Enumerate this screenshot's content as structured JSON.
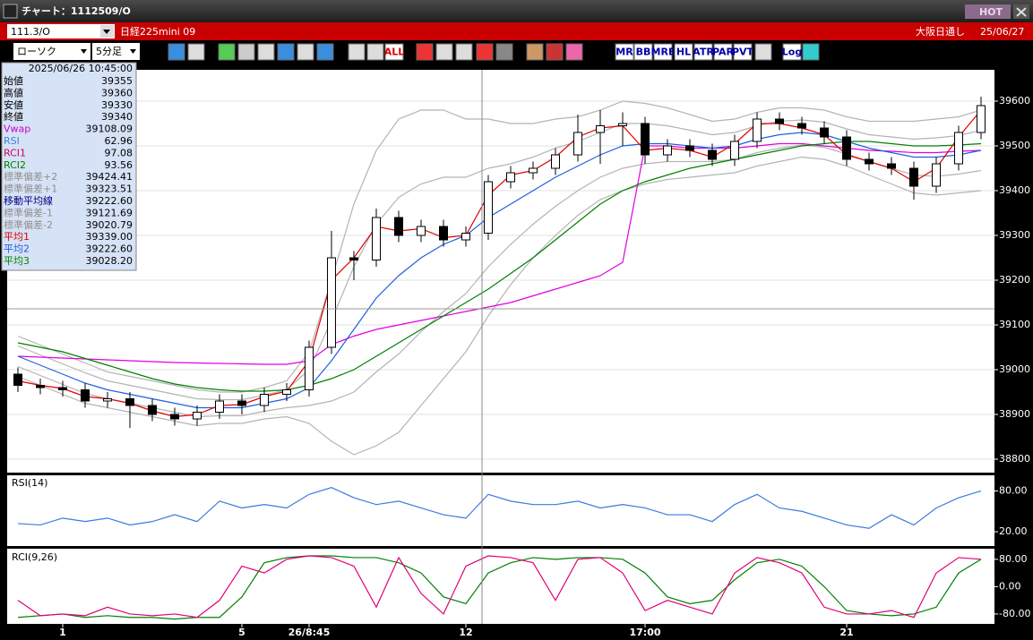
{
  "window": {
    "title": "チャート：1112509/O",
    "hot": "HOT"
  },
  "header": {
    "symbol": "111.3/O",
    "name": "日経225mini 09",
    "market": "大阪日通し",
    "date": "25/06/27"
  },
  "toolbar": {
    "chart_style": "ローソク",
    "interval": "5分足",
    "icon_labels": [
      "ALL",
      "MR",
      "BB",
      "MRE",
      "HL",
      "ATR",
      "PAR",
      "PVT",
      "Log"
    ]
  },
  "panel": {
    "datetime": "2025/06/26 10:45:00",
    "rows": [
      {
        "label": "始値",
        "value": "39355",
        "color": "#000000"
      },
      {
        "label": "高値",
        "value": "39360",
        "color": "#000000"
      },
      {
        "label": "安値",
        "value": "39330",
        "color": "#000000"
      },
      {
        "label": "終値",
        "value": "39340",
        "color": "#000000"
      },
      {
        "label": "Vwap",
        "value": "39108.09",
        "color": "#d000d0"
      },
      {
        "label": "RSI",
        "value": "62.96",
        "color": "#4080e0"
      },
      {
        "label": "RCI1",
        "value": "97.08",
        "color": "#d0006a"
      },
      {
        "label": "RCI2",
        "value": "93.56",
        "color": "#008000"
      },
      {
        "label": "標準偏差+2",
        "value": "39424.41",
        "color": "#909090"
      },
      {
        "label": "標準偏差+1",
        "value": "39323.51",
        "color": "#909090"
      },
      {
        "label": "移動平均線",
        "value": "39222.60",
        "color": "#000080"
      },
      {
        "label": "標準偏差-1",
        "value": "39121.69",
        "color": "#909090"
      },
      {
        "label": "標準偏差-2",
        "value": "39020.79",
        "color": "#909090"
      },
      {
        "label": "平均1",
        "value": "39339.00",
        "color": "#e00000"
      },
      {
        "label": "平均2",
        "value": "39222.60",
        "color": "#1f5fe0"
      },
      {
        "label": "平均3",
        "value": "39028.20",
        "color": "#008000"
      }
    ]
  },
  "chart_data": [
    {
      "type": "candlestick",
      "categories": [
        null,
        null,
        "1",
        null,
        null,
        null,
        null,
        null,
        null,
        null,
        "5",
        null,
        null,
        "26/8:45",
        null,
        null,
        null,
        null,
        null,
        null,
        "12",
        null,
        null,
        null,
        null,
        null,
        null,
        null,
        "17:00",
        null,
        null,
        null,
        null,
        null,
        null,
        null,
        null,
        "21",
        null,
        null,
        null,
        null,
        null,
        null
      ],
      "open": [
        38990,
        38965,
        38960,
        38955,
        38930,
        38935,
        38920,
        38900,
        38890,
        38905,
        38930,
        38920,
        38945,
        38955,
        39050,
        39250,
        39245,
        39340,
        39300,
        39320,
        39290,
        39305,
        39420,
        39440,
        39450,
        39480,
        39530,
        39545,
        39550,
        39480,
        39500,
        39490,
        39470,
        39510,
        39560,
        39550,
        39540,
        39520,
        39470,
        39460,
        39450,
        39410,
        39460,
        39530
      ],
      "high": [
        39005,
        38980,
        38975,
        38970,
        38950,
        38950,
        38935,
        38915,
        38920,
        38945,
        38945,
        38960,
        38970,
        39065,
        39310,
        39265,
        39360,
        39355,
        39335,
        39335,
        39320,
        39435,
        39455,
        39465,
        39495,
        39570,
        39580,
        39575,
        39565,
        39515,
        39515,
        39505,
        39525,
        39575,
        39575,
        39565,
        39555,
        39535,
        39485,
        39475,
        39465,
        39475,
        39545,
        39610
      ],
      "low": [
        38950,
        38945,
        38940,
        38915,
        38915,
        38870,
        38885,
        38875,
        38875,
        38890,
        38900,
        38905,
        38930,
        38940,
        39035,
        39200,
        39230,
        39285,
        39285,
        39275,
        39275,
        39290,
        39405,
        39425,
        39435,
        39465,
        39460,
        39500,
        39460,
        39465,
        39475,
        39455,
        39455,
        39495,
        39535,
        39525,
        39505,
        39455,
        39445,
        39435,
        39380,
        39395,
        39445,
        39515
      ],
      "close": [
        38965,
        38960,
        38955,
        38930,
        38935,
        38920,
        38900,
        38890,
        38905,
        38930,
        38920,
        38945,
        38955,
        39050,
        39250,
        39245,
        39340,
        39300,
        39320,
        39290,
        39305,
        39420,
        39440,
        39450,
        39480,
        39530,
        39545,
        39550,
        39480,
        39500,
        39490,
        39470,
        39510,
        39560,
        39550,
        39540,
        39520,
        39470,
        39460,
        39450,
        39410,
        39460,
        39530,
        39590
      ],
      "up_color": "#ffffff",
      "down_color": "#000000",
      "series": [
        {
          "color": "#b4b4b4",
          "values": [
            39075,
            39055,
            39035,
            39015,
            38995,
            38985,
            38975,
            38965,
            38955,
            38950,
            38950,
            38960,
            38975,
            39040,
            39200,
            39370,
            39490,
            39560,
            39580,
            39580,
            39560,
            39560,
            39550,
            39550,
            39560,
            39565,
            39580,
            39600,
            39595,
            39585,
            39570,
            39555,
            39560,
            39575,
            39585,
            39585,
            39580,
            39565,
            39555,
            39555,
            39555,
            39560,
            39565,
            39580
          ]
        },
        {
          "color": "#b4b4b4",
          "values": [
            39053,
            39033,
            39013,
            38993,
            38975,
            38965,
            38955,
            38945,
            38935,
            38933,
            38933,
            38943,
            38955,
            39000,
            39110,
            39230,
            39325,
            39385,
            39415,
            39430,
            39430,
            39450,
            39460,
            39475,
            39495,
            39510,
            39530,
            39550,
            39550,
            39545,
            39535,
            39525,
            39530,
            39545,
            39555,
            39558,
            39553,
            39538,
            39525,
            39520,
            39515,
            39518,
            39523,
            39535
          ]
        },
        {
          "color": "#b4b4b4",
          "values": [
            39007,
            38987,
            38967,
            38947,
            38935,
            38925,
            38915,
            38905,
            38895,
            38897,
            38897,
            38907,
            38915,
            38920,
            38930,
            38950,
            38995,
            39035,
            39085,
            39130,
            39170,
            39230,
            39280,
            39325,
            39365,
            39400,
            39430,
            39450,
            39460,
            39465,
            39465,
            39465,
            39470,
            39485,
            39495,
            39502,
            39497,
            39482,
            39465,
            39450,
            39435,
            39432,
            39437,
            39445
          ]
        },
        {
          "color": "#b4b4b4",
          "values": [
            38985,
            38965,
            38945,
            38925,
            38915,
            38905,
            38895,
            38885,
            38875,
            38880,
            38880,
            38890,
            38895,
            38880,
            38840,
            38810,
            38830,
            38860,
            38920,
            38980,
            39040,
            39120,
            39190,
            39250,
            39300,
            39345,
            39380,
            39400,
            39415,
            39425,
            39430,
            39435,
            39440,
            39455,
            39465,
            39475,
            39470,
            39455,
            39435,
            39415,
            39395,
            39390,
            39395,
            39400
          ]
        },
        {
          "color": "#e000e0",
          "values": [
            39030,
            39028,
            39026,
            39024,
            39022,
            39020,
            39018,
            39016,
            39015,
            39014,
            39013,
            39012,
            39012,
            39020,
            39056,
            39075,
            39090,
            39100,
            39110,
            39120,
            39130,
            39140,
            39150,
            39165,
            39180,
            39195,
            39210,
            39240,
            39500,
            39500,
            39495,
            39495,
            39495,
            39500,
            39505,
            39505,
            39500,
            39495,
            39490,
            39488,
            39485,
            39485,
            39488,
            39490
          ]
        },
        {
          "color": "#008000",
          "values": [
            39060,
            39050,
            39040,
            39025,
            39010,
            38995,
            38980,
            38968,
            38960,
            38955,
            38952,
            38952,
            38955,
            38965,
            38980,
            39000,
            39030,
            39060,
            39090,
            39120,
            39150,
            39180,
            39215,
            39250,
            39290,
            39330,
            39370,
            39400,
            39420,
            39435,
            39450,
            39460,
            39470,
            39480,
            39490,
            39500,
            39505,
            39510,
            39510,
            39505,
            39500,
            39500,
            39502,
            39505
          ]
        },
        {
          "color": "#1f5fe0",
          "values": [
            39030,
            39010,
            38990,
            38970,
            38955,
            38945,
            38935,
            38925,
            38915,
            38915,
            38915,
            38925,
            38935,
            38960,
            39020,
            39090,
            39160,
            39210,
            39250,
            39280,
            39300,
            39340,
            39370,
            39400,
            39430,
            39455,
            39480,
            39500,
            39505,
            39505,
            39500,
            39495,
            39500,
            39515,
            39525,
            39530,
            39525,
            39510,
            39495,
            39485,
            39475,
            39475,
            39480,
            39490
          ]
        },
        {
          "color": "#e00000",
          "values": [
            38975,
            38965,
            38958,
            38940,
            38935,
            38925,
            38908,
            38895,
            38900,
            38920,
            38922,
            38940,
            38952,
            39020,
            39200,
            39250,
            39320,
            39310,
            39315,
            39295,
            39300,
            39390,
            39435,
            39445,
            39475,
            39520,
            39540,
            39545,
            39490,
            39495,
            39490,
            39475,
            39505,
            39550,
            39550,
            39540,
            39525,
            39480,
            39465,
            39450,
            39420,
            39450,
            39520,
            39580
          ]
        }
      ],
      "ylim": [
        38770,
        39670
      ],
      "yticks": [
        38800,
        38900,
        39000,
        39100,
        39200,
        39300,
        39400,
        39500,
        39600
      ],
      "grid": true
    },
    {
      "type": "line",
      "title": "RSI(14)",
      "series": [
        {
          "color": "#3a7ae0",
          "values": [
            32,
            30,
            40,
            35,
            40,
            30,
            35,
            45,
            35,
            65,
            55,
            60,
            55,
            75,
            85,
            70,
            60,
            65,
            55,
            45,
            40,
            75,
            65,
            60,
            60,
            65,
            55,
            60,
            55,
            45,
            45,
            35,
            60,
            75,
            55,
            50,
            40,
            30,
            25,
            45,
            30,
            55,
            70,
            80
          ]
        }
      ],
      "ylim": [
        -1,
        103
      ],
      "yticks": [
        {
          "value": 80,
          "label": "80.00"
        },
        {
          "value": 20,
          "label": "20.00"
        }
      ],
      "grid": false
    },
    {
      "type": "line",
      "title": "RCI(9,26)",
      "series": [
        {
          "color": "#008000",
          "values": [
            -90,
            -85,
            -80,
            -90,
            -85,
            -90,
            -90,
            -95,
            -90,
            -90,
            -30,
            70,
            85,
            90,
            90,
            85,
            85,
            70,
            40,
            -30,
            -50,
            40,
            70,
            85,
            80,
            85,
            85,
            80,
            40,
            -30,
            -50,
            -40,
            20,
            70,
            80,
            60,
            0,
            -70,
            -80,
            -85,
            -80,
            -60,
            40,
            80
          ]
        },
        {
          "color": "#e0007a",
          "values": [
            -40,
            -85,
            -80,
            -85,
            -60,
            -80,
            -85,
            -80,
            -90,
            -40,
            60,
            40,
            80,
            90,
            85,
            60,
            -60,
            85,
            -20,
            -80,
            60,
            90,
            85,
            70,
            -40,
            80,
            85,
            40,
            -70,
            -40,
            -60,
            -80,
            40,
            85,
            70,
            40,
            -60,
            -80,
            -80,
            -70,
            -90,
            40,
            85,
            80
          ]
        }
      ],
      "ylim": [
        -109,
        111
      ],
      "yticks": [
        {
          "value": 80,
          "label": "80.00"
        },
        {
          "value": 0,
          "label": "0.00"
        },
        {
          "value": -80,
          "label": "-80.00"
        }
      ],
      "grid": false
    }
  ]
}
